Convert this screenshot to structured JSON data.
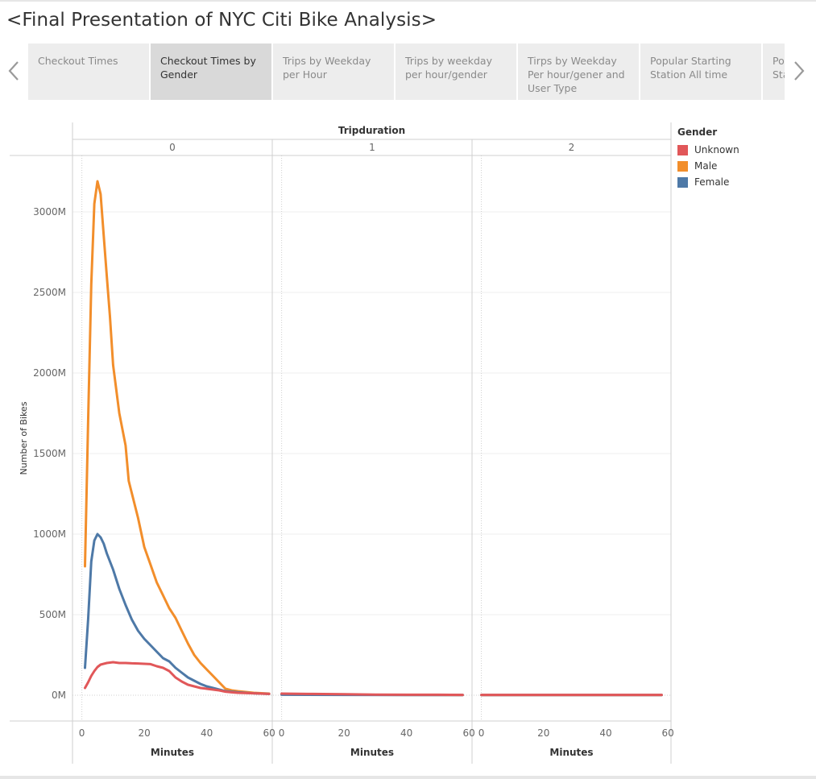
{
  "story_title": "<Final Presentation of NYC Citi Bike Analysis>",
  "nav": {
    "prev_icon": "chevron-left-icon",
    "next_icon": "chevron-right-icon"
  },
  "tabs": [
    {
      "label": "Checkout Times",
      "active": false
    },
    {
      "label": "Checkout Times by Gender",
      "active": true
    },
    {
      "label": "Trips by Weekday per Hour",
      "active": false
    },
    {
      "label": "Trips by weekday per hour/gender",
      "active": false
    },
    {
      "label": "Tirps by Weekday Per hour/gener and User Type",
      "active": false
    },
    {
      "label": "Popular Starting Station All time",
      "active": false
    },
    {
      "label": "Popular Starting Station",
      "active": false
    }
  ],
  "legend": {
    "title": "Gender",
    "items": [
      {
        "label": "Unknown",
        "color": "#e15759"
      },
      {
        "label": "Male",
        "color": "#f28e2b"
      },
      {
        "label": "Female",
        "color": "#4e79a7"
      }
    ]
  },
  "chart_data": {
    "type": "line",
    "title": "",
    "column_header": "Tripduration",
    "panels": [
      "0",
      "1",
      "2"
    ],
    "xlabel": "Minutes",
    "ylabel": "Number of Bikes",
    "xlim": [
      -3,
      61
    ],
    "ylim": [
      -160,
      3350
    ],
    "x_ticks": [
      0,
      20,
      40,
      60
    ],
    "y_ticks": [
      0,
      500,
      1000,
      1500,
      2000,
      2500,
      3000
    ],
    "y_tick_labels": [
      "0M",
      "500M",
      "1000M",
      "1500M",
      "2000M",
      "2500M",
      "3000M"
    ],
    "grid": true,
    "legend_position": "right",
    "series": [
      {
        "name": "Male",
        "color": "#f28e2b",
        "panels": [
          [
            [
              1,
              800
            ],
            [
              2,
              1700
            ],
            [
              3,
              2550
            ],
            [
              4,
              3050
            ],
            [
              5,
              3190
            ],
            [
              6,
              3110
            ],
            [
              7,
              2850
            ],
            [
              8,
              2600
            ],
            [
              9,
              2350
            ],
            [
              10,
              2050
            ],
            [
              12,
              1750
            ],
            [
              14,
              1550
            ],
            [
              15,
              1330
            ],
            [
              18,
              1100
            ],
            [
              20,
              920
            ],
            [
              22,
              810
            ],
            [
              24,
              700
            ],
            [
              26,
              620
            ],
            [
              28,
              540
            ],
            [
              30,
              480
            ],
            [
              32,
              400
            ],
            [
              34,
              320
            ],
            [
              36,
              250
            ],
            [
              38,
              200
            ],
            [
              40,
              160
            ],
            [
              42,
              120
            ],
            [
              44,
              80
            ],
            [
              45,
              60
            ],
            [
              46,
              40
            ],
            [
              48,
              30
            ],
            [
              50,
              25
            ],
            [
              55,
              15
            ],
            [
              60,
              10
            ]
          ],
          [
            [
              0,
              5
            ],
            [
              20,
              3
            ],
            [
              40,
              2
            ],
            [
              58,
              1
            ]
          ],
          [
            [
              0,
              1
            ],
            [
              20,
              1
            ],
            [
              40,
              1
            ],
            [
              58,
              1
            ]
          ]
        ]
      },
      {
        "name": "Female",
        "color": "#4e79a7",
        "panels": [
          [
            [
              1,
              170
            ],
            [
              2,
              470
            ],
            [
              3,
              830
            ],
            [
              4,
              960
            ],
            [
              5,
              1000
            ],
            [
              6,
              980
            ],
            [
              7,
              940
            ],
            [
              8,
              880
            ],
            [
              10,
              780
            ],
            [
              12,
              660
            ],
            [
              14,
              560
            ],
            [
              16,
              470
            ],
            [
              18,
              400
            ],
            [
              20,
              350
            ],
            [
              22,
              310
            ],
            [
              24,
              270
            ],
            [
              26,
              230
            ],
            [
              28,
              210
            ],
            [
              30,
              170
            ],
            [
              32,
              140
            ],
            [
              34,
              110
            ],
            [
              36,
              90
            ],
            [
              38,
              70
            ],
            [
              40,
              55
            ],
            [
              42,
              45
            ],
            [
              44,
              35
            ],
            [
              46,
              25
            ],
            [
              50,
              18
            ],
            [
              55,
              12
            ],
            [
              60,
              8
            ]
          ],
          [
            [
              0,
              3
            ],
            [
              20,
              2
            ],
            [
              40,
              1
            ],
            [
              58,
              1
            ]
          ],
          [
            [
              0,
              1
            ],
            [
              20,
              1
            ],
            [
              40,
              1
            ],
            [
              58,
              1
            ]
          ]
        ]
      },
      {
        "name": "Unknown",
        "color": "#e15759",
        "panels": [
          [
            [
              1,
              45
            ],
            [
              2,
              80
            ],
            [
              3,
              120
            ],
            [
              4,
              150
            ],
            [
              5,
              175
            ],
            [
              6,
              190
            ],
            [
              8,
              200
            ],
            [
              10,
              205
            ],
            [
              12,
              200
            ],
            [
              14,
              200
            ],
            [
              16,
              198
            ],
            [
              18,
              197
            ],
            [
              20,
              195
            ],
            [
              22,
              193
            ],
            [
              24,
              180
            ],
            [
              26,
              170
            ],
            [
              28,
              150
            ],
            [
              30,
              110
            ],
            [
              32,
              85
            ],
            [
              34,
              65
            ],
            [
              36,
              55
            ],
            [
              38,
              45
            ],
            [
              40,
              40
            ],
            [
              42,
              35
            ],
            [
              44,
              30
            ],
            [
              46,
              22
            ],
            [
              48,
              18
            ],
            [
              50,
              15
            ],
            [
              55,
              12
            ],
            [
              60,
              8
            ]
          ],
          [
            [
              0,
              10
            ],
            [
              10,
              8
            ],
            [
              20,
              6
            ],
            [
              30,
              4
            ],
            [
              40,
              3
            ],
            [
              50,
              3
            ],
            [
              58,
              2
            ]
          ],
          [
            [
              0,
              2
            ],
            [
              20,
              2
            ],
            [
              40,
              2
            ],
            [
              58,
              2
            ]
          ]
        ]
      }
    ]
  }
}
